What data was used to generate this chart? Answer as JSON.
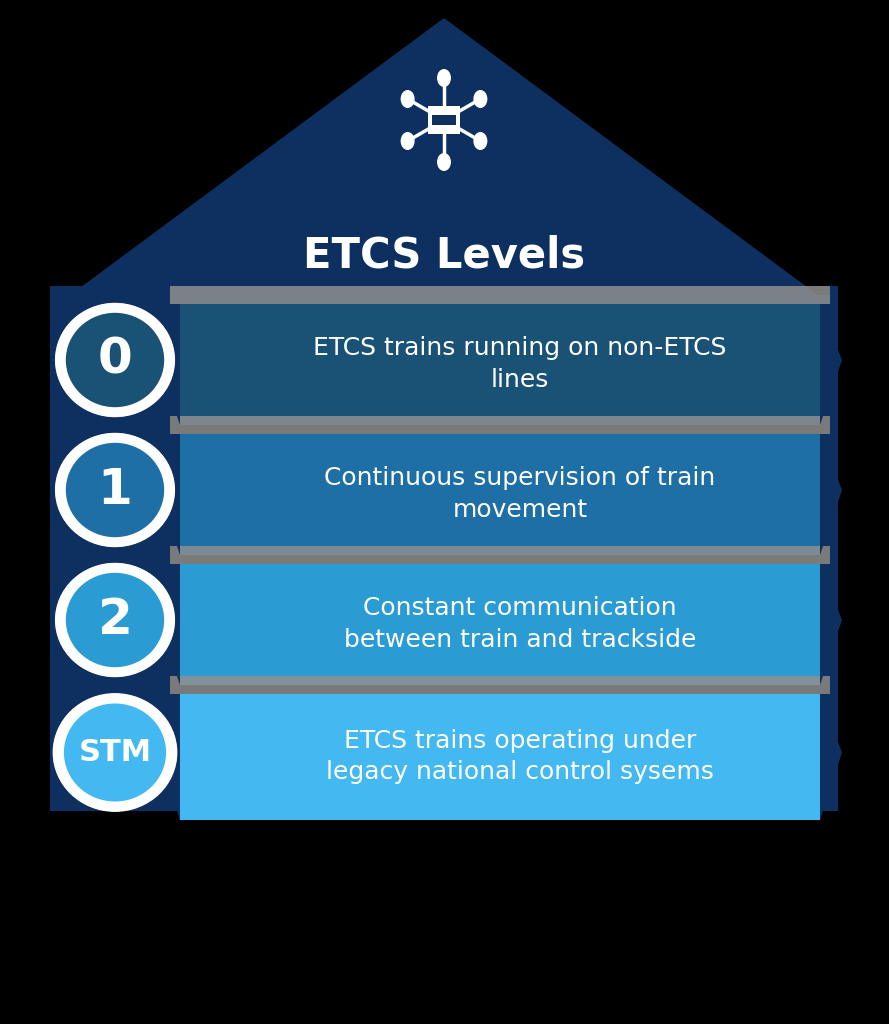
{
  "title": "ETCS Levels",
  "background_color": "#000000",
  "dark_blue": "#0d3060",
  "medium_blue": "#1a5276",
  "light_blue": "#2980b9",
  "bright_blue": "#3daee9",
  "gray_sep": "#909090",
  "white": "#ffffff",
  "levels": [
    {
      "label": "0",
      "text": "ETCS trains running on non-ETCS\nlines",
      "color": "#1a5276",
      "circle_color": "#1a5276"
    },
    {
      "label": "1",
      "text": "Continuous supervision of train\nmovement",
      "color": "#1e6fa5",
      "circle_color": "#1e6fa5"
    },
    {
      "label": "2",
      "text": "Constant communication\nbetween train and trackside",
      "color": "#2b9bd4",
      "circle_color": "#2b9bd4"
    },
    {
      "label": "STM",
      "text": "ETCS trains operating under\nlegacy national control sysems",
      "color": "#44b8f0",
      "circle_color": "#44b8f0"
    }
  ],
  "fig_w": 8.89,
  "fig_h": 10.24,
  "dpi": 100
}
